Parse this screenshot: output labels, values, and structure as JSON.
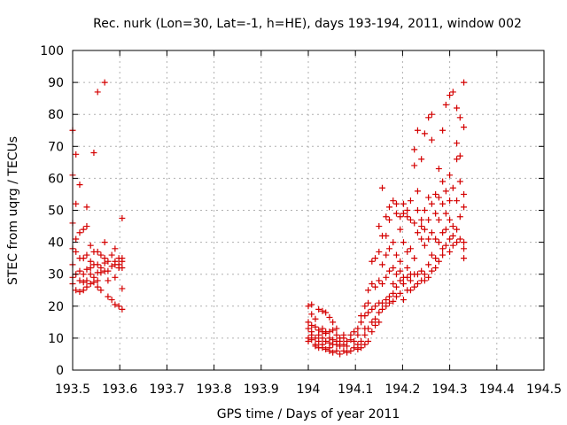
{
  "chart_data": {
    "type": "scatter",
    "title": "Rec. nurk (Lon=30, Lat=-1, h=HE), days 193-194, 2011, window 002",
    "xlabel": "GPS time / Days of year 2011",
    "ylabel": "STEC from uqrg / TECUs",
    "xlim": [
      193.5,
      194.5
    ],
    "ylim": [
      0,
      100
    ],
    "x_ticks": [
      "193.5",
      "193.6",
      "193.7",
      "193.8",
      "193.9",
      "194",
      "194.1",
      "194.2",
      "194.3",
      "194.4",
      "194.5"
    ],
    "y_ticks": [
      "0",
      "10",
      "20",
      "30",
      "40",
      "50",
      "60",
      "70",
      "80",
      "90",
      "100"
    ],
    "grid": true,
    "marker": "plus",
    "color": "#d40000",
    "points": [
      [
        193.5,
        75
      ],
      [
        193.5,
        61
      ],
      [
        193.5,
        46
      ],
      [
        193.5,
        38
      ],
      [
        193.5,
        33
      ],
      [
        193.5,
        29
      ],
      [
        193.5,
        27
      ],
      [
        193.507,
        67.5
      ],
      [
        193.507,
        52
      ],
      [
        193.507,
        41
      ],
      [
        193.507,
        37
      ],
      [
        193.507,
        30
      ],
      [
        193.507,
        25
      ],
      [
        193.515,
        58
      ],
      [
        193.515,
        43
      ],
      [
        193.515,
        35
      ],
      [
        193.515,
        31
      ],
      [
        193.515,
        28
      ],
      [
        193.515,
        24.5
      ],
      [
        193.523,
        44
      ],
      [
        193.523,
        35
      ],
      [
        193.523,
        30
      ],
      [
        193.523,
        27.5
      ],
      [
        193.523,
        25
      ],
      [
        193.53,
        51
      ],
      [
        193.53,
        45
      ],
      [
        193.53,
        36
      ],
      [
        193.53,
        31.5
      ],
      [
        193.53,
        28
      ],
      [
        193.53,
        26
      ],
      [
        193.538,
        39
      ],
      [
        193.538,
        34
      ],
      [
        193.538,
        32
      ],
      [
        193.538,
        30
      ],
      [
        193.538,
        27
      ],
      [
        193.545,
        68
      ],
      [
        193.545,
        37
      ],
      [
        193.545,
        33
      ],
      [
        193.545,
        29
      ],
      [
        193.545,
        27.5
      ],
      [
        193.553,
        87
      ],
      [
        193.553,
        37
      ],
      [
        193.553,
        33
      ],
      [
        193.553,
        30.5
      ],
      [
        193.553,
        28
      ],
      [
        193.553,
        26
      ],
      [
        193.56,
        36
      ],
      [
        193.56,
        32
      ],
      [
        193.56,
        30.5
      ],
      [
        193.56,
        25
      ],
      [
        193.568,
        90
      ],
      [
        193.568,
        40
      ],
      [
        193.568,
        35
      ],
      [
        193.568,
        33.5
      ],
      [
        193.568,
        31
      ],
      [
        193.575,
        34
      ],
      [
        193.575,
        31
      ],
      [
        193.575,
        28
      ],
      [
        193.575,
        23
      ],
      [
        193.583,
        36
      ],
      [
        193.583,
        32.5
      ],
      [
        193.583,
        22
      ],
      [
        193.59,
        38
      ],
      [
        193.59,
        34
      ],
      [
        193.59,
        33
      ],
      [
        193.59,
        29
      ],
      [
        193.59,
        20.5
      ],
      [
        193.598,
        35
      ],
      [
        193.598,
        33
      ],
      [
        193.598,
        32
      ],
      [
        193.598,
        20
      ],
      [
        193.605,
        47.5
      ],
      [
        193.605,
        35
      ],
      [
        193.605,
        34
      ],
      [
        193.605,
        32
      ],
      [
        193.605,
        25.5
      ],
      [
        193.605,
        19
      ],
      [
        194.0,
        20
      ],
      [
        194.0,
        15
      ],
      [
        194.0,
        13
      ],
      [
        194.0,
        10
      ],
      [
        194.0,
        9
      ],
      [
        194.007,
        20.5
      ],
      [
        194.007,
        17.5
      ],
      [
        194.007,
        14
      ],
      [
        194.007,
        12
      ],
      [
        194.007,
        11
      ],
      [
        194.007,
        9.5
      ],
      [
        194.015,
        16
      ],
      [
        194.015,
        13.5
      ],
      [
        194.015,
        10
      ],
      [
        194.015,
        8
      ],
      [
        194.015,
        7.5
      ],
      [
        194.022,
        19
      ],
      [
        194.022,
        12.5
      ],
      [
        194.022,
        11
      ],
      [
        194.022,
        9
      ],
      [
        194.022,
        7
      ],
      [
        194.03,
        18.5
      ],
      [
        194.03,
        13
      ],
      [
        194.03,
        12
      ],
      [
        194.03,
        10
      ],
      [
        194.03,
        8
      ],
      [
        194.03,
        7
      ],
      [
        194.037,
        18
      ],
      [
        194.037,
        12
      ],
      [
        194.037,
        11.5
      ],
      [
        194.037,
        9
      ],
      [
        194.037,
        6.5
      ],
      [
        194.045,
        16.5
      ],
      [
        194.045,
        12
      ],
      [
        194.045,
        10
      ],
      [
        194.045,
        8.5
      ],
      [
        194.045,
        7
      ],
      [
        194.045,
        6
      ],
      [
        194.052,
        15
      ],
      [
        194.052,
        12.5
      ],
      [
        194.052,
        9.5
      ],
      [
        194.052,
        8
      ],
      [
        194.052,
        5.5
      ],
      [
        194.06,
        13
      ],
      [
        194.06,
        11
      ],
      [
        194.06,
        9
      ],
      [
        194.06,
        8
      ],
      [
        194.06,
        6
      ],
      [
        194.067,
        10
      ],
      [
        194.067,
        9
      ],
      [
        194.067,
        7.5
      ],
      [
        194.067,
        5
      ],
      [
        194.075,
        11
      ],
      [
        194.075,
        10
      ],
      [
        194.075,
        8
      ],
      [
        194.075,
        6
      ],
      [
        194.082,
        9
      ],
      [
        194.082,
        7.5
      ],
      [
        194.082,
        5.5
      ],
      [
        194.09,
        11
      ],
      [
        194.09,
        9.5
      ],
      [
        194.09,
        6
      ],
      [
        194.097,
        12
      ],
      [
        194.097,
        9
      ],
      [
        194.097,
        7
      ],
      [
        194.105,
        13
      ],
      [
        194.105,
        11
      ],
      [
        194.105,
        8
      ],
      [
        194.105,
        6.5
      ],
      [
        194.112,
        17
      ],
      [
        194.112,
        15
      ],
      [
        194.112,
        9
      ],
      [
        194.112,
        7
      ],
      [
        194.12,
        20
      ],
      [
        194.12,
        17
      ],
      [
        194.12,
        13
      ],
      [
        194.12,
        11
      ],
      [
        194.12,
        8
      ],
      [
        194.127,
        25
      ],
      [
        194.127,
        21
      ],
      [
        194.127,
        18
      ],
      [
        194.127,
        13
      ],
      [
        194.127,
        9
      ],
      [
        194.135,
        34
      ],
      [
        194.135,
        27
      ],
      [
        194.135,
        19
      ],
      [
        194.135,
        15
      ],
      [
        194.135,
        12
      ],
      [
        194.142,
        35
      ],
      [
        194.142,
        26
      ],
      [
        194.142,
        20
      ],
      [
        194.142,
        16
      ],
      [
        194.142,
        14
      ],
      [
        194.15,
        45
      ],
      [
        194.15,
        37
      ],
      [
        194.15,
        28
      ],
      [
        194.15,
        21
      ],
      [
        194.15,
        18
      ],
      [
        194.15,
        15
      ],
      [
        194.157,
        57
      ],
      [
        194.157,
        42
      ],
      [
        194.157,
        33
      ],
      [
        194.157,
        27
      ],
      [
        194.157,
        21
      ],
      [
        194.157,
        19
      ],
      [
        194.165,
        48
      ],
      [
        194.165,
        42
      ],
      [
        194.165,
        36
      ],
      [
        194.165,
        29
      ],
      [
        194.165,
        22
      ],
      [
        194.165,
        20
      ],
      [
        194.172,
        51
      ],
      [
        194.172,
        47
      ],
      [
        194.172,
        38
      ],
      [
        194.172,
        31
      ],
      [
        194.172,
        23
      ],
      [
        194.172,
        21
      ],
      [
        194.18,
        53
      ],
      [
        194.18,
        40
      ],
      [
        194.18,
        32
      ],
      [
        194.18,
        27
      ],
      [
        194.18,
        24
      ],
      [
        194.18,
        21.5
      ],
      [
        194.187,
        52
      ],
      [
        194.187,
        49
      ],
      [
        194.187,
        36
      ],
      [
        194.187,
        30
      ],
      [
        194.187,
        26
      ],
      [
        194.187,
        23
      ],
      [
        194.195,
        48
      ],
      [
        194.195,
        44
      ],
      [
        194.195,
        34
      ],
      [
        194.195,
        31
      ],
      [
        194.195,
        28
      ],
      [
        194.195,
        24
      ],
      [
        194.202,
        52
      ],
      [
        194.202,
        49
      ],
      [
        194.202,
        40
      ],
      [
        194.202,
        29
      ],
      [
        194.202,
        27
      ],
      [
        194.202,
        22
      ],
      [
        194.21,
        50
      ],
      [
        194.21,
        48
      ],
      [
        194.21,
        37
      ],
      [
        194.21,
        32
      ],
      [
        194.21,
        29
      ],
      [
        194.21,
        25
      ],
      [
        194.217,
        53
      ],
      [
        194.217,
        47
      ],
      [
        194.217,
        38
      ],
      [
        194.217,
        30
      ],
      [
        194.217,
        28
      ],
      [
        194.217,
        25
      ],
      [
        194.225,
        69
      ],
      [
        194.225,
        64
      ],
      [
        194.225,
        46
      ],
      [
        194.225,
        35
      ],
      [
        194.225,
        30
      ],
      [
        194.225,
        26
      ],
      [
        194.232,
        75
      ],
      [
        194.232,
        56
      ],
      [
        194.232,
        50
      ],
      [
        194.232,
        43
      ],
      [
        194.232,
        30
      ],
      [
        194.232,
        27
      ],
      [
        194.24,
        66
      ],
      [
        194.24,
        47
      ],
      [
        194.24,
        45
      ],
      [
        194.24,
        41
      ],
      [
        194.24,
        31
      ],
      [
        194.24,
        28
      ],
      [
        194.247,
        74
      ],
      [
        194.247,
        50
      ],
      [
        194.247,
        44
      ],
      [
        194.247,
        39
      ],
      [
        194.247,
        30
      ],
      [
        194.247,
        28
      ],
      [
        194.255,
        79
      ],
      [
        194.255,
        54
      ],
      [
        194.255,
        47
      ],
      [
        194.255,
        41
      ],
      [
        194.255,
        33
      ],
      [
        194.255,
        29
      ],
      [
        194.262,
        80
      ],
      [
        194.262,
        72
      ],
      [
        194.262,
        52
      ],
      [
        194.262,
        43
      ],
      [
        194.262,
        36
      ],
      [
        194.262,
        31
      ],
      [
        194.27,
        55
      ],
      [
        194.27,
        49
      ],
      [
        194.27,
        41
      ],
      [
        194.27,
        35
      ],
      [
        194.27,
        32
      ],
      [
        194.277,
        63
      ],
      [
        194.277,
        54
      ],
      [
        194.277,
        47
      ],
      [
        194.277,
        40
      ],
      [
        194.277,
        34
      ],
      [
        194.285,
        75
      ],
      [
        194.285,
        59
      ],
      [
        194.285,
        52
      ],
      [
        194.285,
        43
      ],
      [
        194.285,
        38
      ],
      [
        194.285,
        36
      ],
      [
        194.292,
        83
      ],
      [
        194.292,
        56
      ],
      [
        194.292,
        49
      ],
      [
        194.292,
        44
      ],
      [
        194.292,
        39
      ],
      [
        194.3,
        86
      ],
      [
        194.3,
        61
      ],
      [
        194.3,
        53
      ],
      [
        194.3,
        47
      ],
      [
        194.3,
        41
      ],
      [
        194.3,
        37
      ],
      [
        194.307,
        87
      ],
      [
        194.307,
        57
      ],
      [
        194.307,
        45
      ],
      [
        194.307,
        42
      ],
      [
        194.307,
        39
      ],
      [
        194.315,
        82
      ],
      [
        194.315,
        71
      ],
      [
        194.315,
        66
      ],
      [
        194.315,
        53
      ],
      [
        194.315,
        44
      ],
      [
        194.315,
        40
      ],
      [
        194.322,
        79
      ],
      [
        194.322,
        67
      ],
      [
        194.322,
        59
      ],
      [
        194.322,
        48
      ],
      [
        194.322,
        41
      ],
      [
        194.33,
        76
      ],
      [
        194.33,
        90
      ],
      [
        194.33,
        55
      ],
      [
        194.33,
        51
      ],
      [
        194.33,
        40
      ],
      [
        194.33,
        35
      ],
      [
        194.33,
        38
      ]
    ]
  }
}
